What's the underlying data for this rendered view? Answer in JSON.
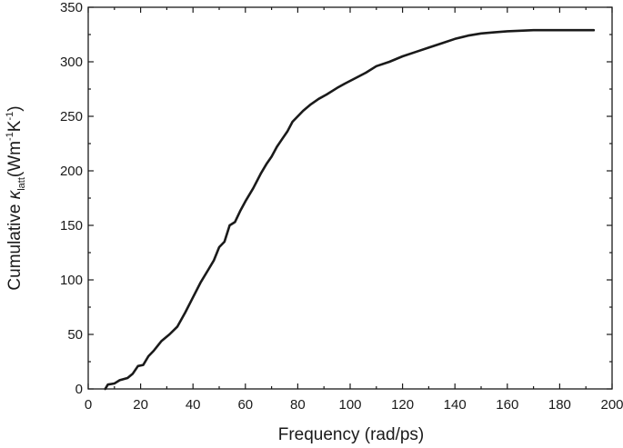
{
  "chart_data": {
    "type": "line",
    "xlabel": "Frequency (rad/ps)",
    "ylabel": {
      "prefix": "Cumulative ",
      "symbol": "κ",
      "subscript": "latt",
      "unit_open": "(Wm",
      "unit_exp1": "-1",
      "unit_mid": "K",
      "unit_exp2": "-1",
      "unit_close": ")"
    },
    "xlim": [
      0,
      200
    ],
    "ylim": [
      0,
      350
    ],
    "x_ticks": [
      0,
      20,
      40,
      60,
      80,
      100,
      120,
      140,
      160,
      180,
      200
    ],
    "y_ticks": [
      0,
      50,
      100,
      150,
      200,
      250,
      300,
      350
    ],
    "x_tick_labels": [
      "0",
      "20",
      "40",
      "60",
      "80",
      "100",
      "120",
      "140",
      "160",
      "180",
      "200"
    ],
    "y_tick_labels": [
      "0",
      "50",
      "100",
      "150",
      "200",
      "250",
      "300",
      "350"
    ],
    "grid": false,
    "legend": "none",
    "series": [
      {
        "color": "#1a1a1a",
        "x": [
          6.5,
          7.5,
          10,
          12,
          15,
          17,
          19,
          21,
          23,
          25,
          28,
          31,
          34,
          37,
          40,
          43,
          46,
          48,
          50,
          52,
          54,
          56,
          58,
          60,
          63,
          66,
          68,
          70,
          72,
          74,
          76,
          78,
          80,
          82,
          85,
          88,
          91,
          95,
          98,
          102,
          106,
          110,
          115,
          120,
          125,
          130,
          135,
          140,
          145,
          150,
          155,
          160,
          165,
          170,
          180,
          193
        ],
        "y": [
          0,
          4,
          5,
          8,
          10,
          14,
          21,
          22,
          30,
          35,
          44,
          50,
          57,
          70,
          84,
          98,
          110,
          118,
          130,
          135,
          150,
          153,
          163,
          172,
          184,
          198,
          206,
          213,
          222,
          229,
          236,
          245,
          250,
          255,
          261,
          266,
          270,
          276,
          280,
          285,
          290,
          296,
          300,
          305,
          309,
          313,
          317,
          321,
          324,
          326,
          327,
          328,
          328.5,
          329,
          329,
          329
        ]
      }
    ]
  }
}
